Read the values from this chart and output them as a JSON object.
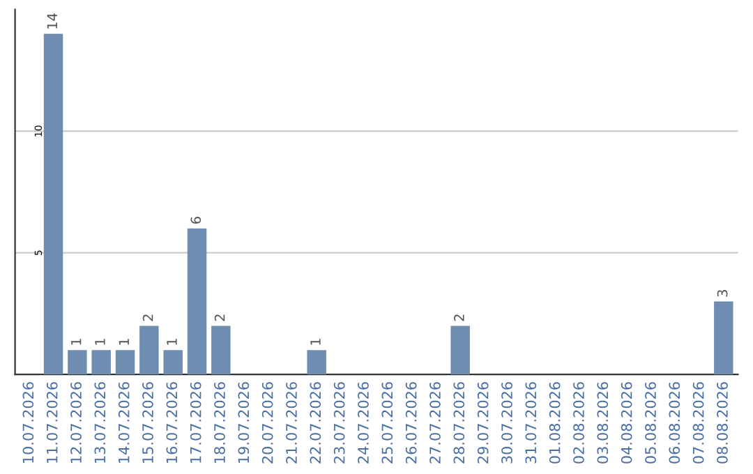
{
  "chart_data": {
    "type": "bar",
    "categories": [
      "10.07.2026",
      "11.07.2026",
      "12.07.2026",
      "13.07.2026",
      "14.07.2026",
      "15.07.2026",
      "16.07.2026",
      "17.07.2026",
      "18.07.2026",
      "19.07.2026",
      "20.07.2026",
      "21.07.2026",
      "22.07.2026",
      "23.07.2026",
      "24.07.2026",
      "25.07.2026",
      "26.07.2026",
      "27.07.2026",
      "28.07.2026",
      "29.07.2026",
      "30.07.2026",
      "31.07.2026",
      "01.08.2026",
      "02.08.2026",
      "03.08.2026",
      "04.08.2026",
      "05.08.2026",
      "06.08.2026",
      "07.08.2026",
      "08.08.2026"
    ],
    "values": [
      0,
      14,
      1,
      1,
      1,
      2,
      1,
      6,
      2,
      0,
      0,
      0,
      1,
      0,
      0,
      0,
      0,
      0,
      2,
      0,
      0,
      0,
      0,
      0,
      0,
      0,
      0,
      0,
      0,
      3
    ],
    "value_labels": [
      null,
      "14",
      "1",
      "1",
      "1",
      "2",
      "1",
      "6",
      "2",
      null,
      null,
      null,
      "1",
      null,
      null,
      null,
      null,
      null,
      "2",
      null,
      null,
      null,
      null,
      null,
      null,
      null,
      null,
      null,
      null,
      "3"
    ],
    "color": "#6f8db0",
    "ylim": [
      0,
      15
    ],
    "yticks": [
      5,
      10
    ],
    "grid": "y",
    "legend": false
  }
}
